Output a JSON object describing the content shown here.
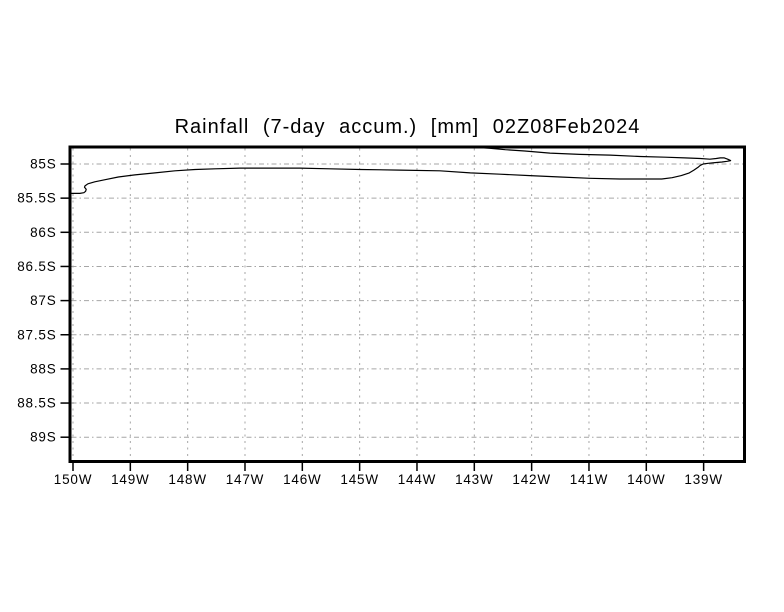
{
  "chart_data": {
    "type": "line",
    "subtype": "contour-map",
    "title": "Rainfall (7-day accum.) [mm] 02Z08Feb2024",
    "grid": true,
    "legend": "none",
    "x_axis": {
      "unit": "degrees west longitude",
      "ticks": [
        150,
        149,
        148,
        147,
        146,
        145,
        144,
        143,
        142,
        141,
        140,
        139
      ],
      "tick_labels": [
        "150W",
        "149W",
        "148W",
        "147W",
        "146W",
        "145W",
        "144W",
        "143W",
        "142W",
        "141W",
        "140W",
        "139W"
      ]
    },
    "y_axis": {
      "unit": "degrees south latitude",
      "ticks": [
        85,
        85.5,
        86,
        86.5,
        87,
        87.5,
        88,
        88.5,
        89
      ],
      "tick_labels": [
        "85S",
        "85.5S",
        "86S",
        "86.5S",
        "87S",
        "87.5S",
        "88S",
        "88.5S",
        "89S"
      ]
    },
    "xlim_deg_west": [
      150.03,
      138.29
    ],
    "ylim_deg_south": [
      84.77,
      89.36
    ],
    "colors": {
      "background": "#ffffff",
      "frame": "#000000",
      "grid": "#a6a6a6",
      "contour": "#000000",
      "text": "#000000"
    },
    "series": [
      {
        "name": "rainfall-accumulation-contour",
        "points_lon_lat": [
          [
            150.04,
            85.43
          ],
          [
            149.88,
            85.43
          ],
          [
            149.81,
            85.42
          ],
          [
            149.78,
            85.4
          ],
          [
            149.77,
            85.37
          ],
          [
            149.8,
            85.34
          ],
          [
            149.79,
            85.32
          ],
          [
            149.74,
            85.29
          ],
          [
            149.62,
            85.26
          ],
          [
            149.44,
            85.23
          ],
          [
            149.21,
            85.19
          ],
          [
            148.92,
            85.16
          ],
          [
            148.57,
            85.13
          ],
          [
            148.22,
            85.1
          ],
          [
            147.87,
            85.08
          ],
          [
            147.52,
            85.07
          ],
          [
            147.09,
            85.06
          ],
          [
            146.56,
            85.06
          ],
          [
            146.04,
            85.06
          ],
          [
            145.52,
            85.07
          ],
          [
            144.99,
            85.08
          ],
          [
            144.3,
            85.09
          ],
          [
            143.6,
            85.1
          ],
          [
            143.07,
            85.13
          ],
          [
            142.55,
            85.15
          ],
          [
            142.03,
            85.17
          ],
          [
            141.5,
            85.19
          ],
          [
            140.98,
            85.21
          ],
          [
            140.46,
            85.22
          ],
          [
            140.02,
            85.22
          ],
          [
            139.73,
            85.22
          ],
          [
            139.55,
            85.2
          ],
          [
            139.39,
            85.17
          ],
          [
            139.25,
            85.13
          ],
          [
            139.17,
            85.09
          ],
          [
            139.1,
            85.05
          ],
          [
            139.06,
            85.02
          ],
          [
            139.01,
            85.0
          ],
          [
            138.92,
            84.99
          ],
          [
            138.8,
            84.98
          ],
          [
            138.68,
            84.97
          ],
          [
            138.59,
            84.96
          ],
          [
            138.53,
            84.95
          ],
          [
            138.58,
            84.93
          ],
          [
            138.64,
            84.91
          ],
          [
            138.71,
            84.91
          ],
          [
            138.78,
            84.92
          ],
          [
            138.89,
            84.93
          ],
          [
            139.06,
            84.92
          ],
          [
            139.33,
            84.91
          ],
          [
            139.67,
            84.9
          ],
          [
            140.11,
            84.89
          ],
          [
            140.63,
            84.87
          ],
          [
            141.16,
            84.86
          ],
          [
            141.68,
            84.84
          ],
          [
            142.12,
            84.81
          ],
          [
            142.46,
            84.79
          ],
          [
            142.73,
            84.77
          ],
          [
            142.9,
            84.76
          ]
        ]
      }
    ]
  }
}
